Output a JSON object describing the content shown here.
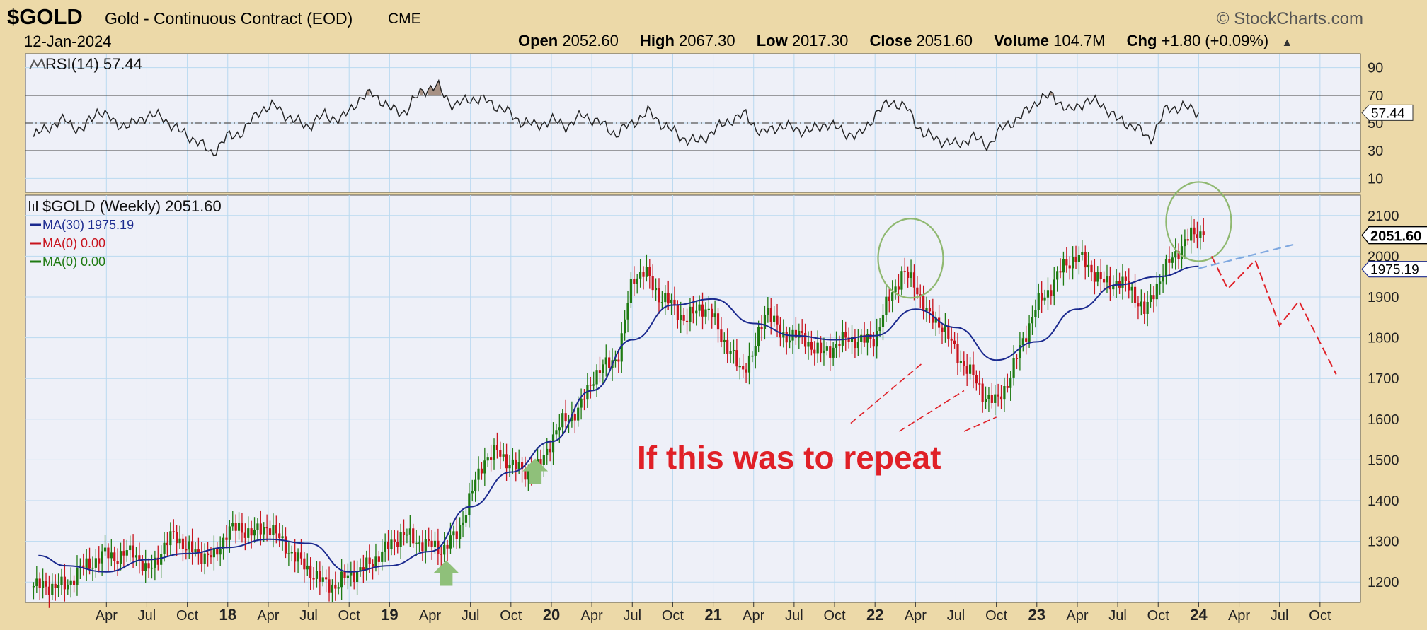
{
  "header": {
    "symbol": "$GOLD",
    "description": "Gold - Continuous Contract (EOD)",
    "exchange": "CME",
    "brand": "© StockCharts.com",
    "date": "12-Jan-2024",
    "open_label": "Open",
    "open": "2052.60",
    "high_label": "High",
    "high": "2067.30",
    "low_label": "Low",
    "low": "2017.30",
    "close_label": "Close",
    "close": "2051.60",
    "volume_label": "Volume",
    "volume": "104.7M",
    "chg_label": "Chg",
    "chg": "+1.80 (+0.09%)"
  },
  "colors": {
    "frame_bg": "#ecd9a8",
    "plot_bg": "#eef0f8",
    "grid": "#b9d9f0",
    "up_bar": "#1e7a12",
    "down_bar": "#c8141e",
    "ma30": "#1b2a8f",
    "rsi_line": "#222222",
    "rsi_fill": "#9a8070",
    "annotation_red": "#e02027",
    "arrow_green": "#8fc07a",
    "circle_green": "#8fb870",
    "projection_blue": "#7fa8e0"
  },
  "chart_data": [
    {
      "type": "line",
      "name": "rsi-panel",
      "legend": {
        "icon": "rsi-icon",
        "label": "RSI(14)",
        "value": "57.44"
      },
      "ylim": [
        0,
        100
      ],
      "yticks": [
        10,
        30,
        50,
        70,
        90
      ],
      "reference_lines": [
        30,
        50,
        70
      ],
      "last_value_tag": "57.44",
      "x": [
        2016.8,
        2016.9,
        2017.0,
        2017.1,
        2017.2,
        2017.3,
        2017.4,
        2017.5,
        2017.6,
        2017.7,
        2017.8,
        2017.9,
        2018.0,
        2018.1,
        2018.2,
        2018.3,
        2018.4,
        2018.5,
        2018.6,
        2018.7,
        2018.8,
        2018.9,
        2019.0,
        2019.1,
        2019.2,
        2019.3,
        2019.4,
        2019.5,
        2019.6,
        2019.7,
        2019.8,
        2019.9,
        2020.0,
        2020.1,
        2020.2,
        2020.3,
        2020.4,
        2020.5,
        2020.6,
        2020.7,
        2020.8,
        2020.9,
        2021.0,
        2021.1,
        2021.2,
        2021.3,
        2021.4,
        2021.5,
        2021.6,
        2021.7,
        2021.8,
        2021.9,
        2022.0,
        2022.1,
        2022.2,
        2022.3,
        2022.4,
        2022.5,
        2022.6,
        2022.7,
        2022.8,
        2022.9,
        2023.0,
        2023.1,
        2023.2,
        2023.3,
        2023.4,
        2023.5,
        2023.6,
        2023.7,
        2023.8,
        2023.9,
        2024.0
      ],
      "values": [
        40,
        48,
        52,
        44,
        60,
        50,
        48,
        56,
        54,
        44,
        38,
        28,
        40,
        44,
        60,
        62,
        52,
        48,
        56,
        52,
        66,
        72,
        60,
        58,
        74,
        76,
        62,
        68,
        66,
        60,
        52,
        48,
        52,
        48,
        56,
        50,
        42,
        50,
        58,
        48,
        40,
        36,
        44,
        52,
        56,
        42,
        48,
        46,
        44,
        50,
        44,
        40,
        56,
        66,
        60,
        42,
        38,
        34,
        40,
        34,
        48,
        54,
        66,
        70,
        58,
        66,
        64,
        52,
        48,
        38,
        60,
        62,
        57.44
      ]
    },
    {
      "type": "candlestick",
      "name": "price-panel",
      "legend_title": "$GOLD (Weekly) 2051.60",
      "legend_icon": "price-bars-icon",
      "series": [
        {
          "name": "MA(30) 1975.19",
          "color": "#1b2a8f"
        },
        {
          "name": "MA(0) 0.00",
          "color": "#c8141e"
        },
        {
          "name": "MA(0) 0.00",
          "color": "#1e7a12"
        }
      ],
      "ylim": [
        1150,
        2150
      ],
      "yticks": [
        1200,
        1300,
        1400,
        1500,
        1600,
        1700,
        1800,
        1900,
        2000,
        2100
      ],
      "price_tags": [
        "2051.60",
        "1975.19"
      ],
      "x_labels": [
        {
          "t": 2017.25,
          "label": "Apr"
        },
        {
          "t": 2017.5,
          "label": "Jul"
        },
        {
          "t": 2017.75,
          "label": "Oct"
        },
        {
          "t": 2018.0,
          "label": "18"
        },
        {
          "t": 2018.25,
          "label": "Apr"
        },
        {
          "t": 2018.5,
          "label": "Jul"
        },
        {
          "t": 2018.75,
          "label": "Oct"
        },
        {
          "t": 2019.0,
          "label": "19"
        },
        {
          "t": 2019.25,
          "label": "Apr"
        },
        {
          "t": 2019.5,
          "label": "Jul"
        },
        {
          "t": 2019.75,
          "label": "Oct"
        },
        {
          "t": 2020.0,
          "label": "20"
        },
        {
          "t": 2020.25,
          "label": "Apr"
        },
        {
          "t": 2020.5,
          "label": "Jul"
        },
        {
          "t": 2020.75,
          "label": "Oct"
        },
        {
          "t": 2021.0,
          "label": "21"
        },
        {
          "t": 2021.25,
          "label": "Apr"
        },
        {
          "t": 2021.5,
          "label": "Jul"
        },
        {
          "t": 2021.75,
          "label": "Oct"
        },
        {
          "t": 2022.0,
          "label": "22"
        },
        {
          "t": 2022.25,
          "label": "Apr"
        },
        {
          "t": 2022.5,
          "label": "Jul"
        },
        {
          "t": 2022.75,
          "label": "Oct"
        },
        {
          "t": 2023.0,
          "label": "23"
        },
        {
          "t": 2023.25,
          "label": "Apr"
        },
        {
          "t": 2023.5,
          "label": "Jul"
        },
        {
          "t": 2023.75,
          "label": "Oct"
        },
        {
          "t": 2024.0,
          "label": "24"
        },
        {
          "t": 2024.25,
          "label": "Apr"
        },
        {
          "t": 2024.5,
          "label": "Jul"
        },
        {
          "t": 2024.75,
          "label": "Oct"
        }
      ],
      "price_x": [
        2017.0,
        2017.08,
        2017.17,
        2017.25,
        2017.33,
        2017.42,
        2017.5,
        2017.58,
        2017.67,
        2017.75,
        2017.83,
        2017.92,
        2018.0,
        2018.08,
        2018.17,
        2018.25,
        2018.33,
        2018.42,
        2018.5,
        2018.58,
        2018.67,
        2018.75,
        2018.83,
        2018.92,
        2019.0,
        2019.08,
        2019.17,
        2019.25,
        2019.33,
        2019.42,
        2019.5,
        2019.58,
        2019.67,
        2019.75,
        2019.83,
        2019.92,
        2020.0,
        2020.08,
        2020.17,
        2020.25,
        2020.33,
        2020.42,
        2020.5,
        2020.58,
        2020.67,
        2020.75,
        2020.83,
        2020.92,
        2021.0,
        2021.08,
        2021.17,
        2021.25,
        2021.33,
        2021.42,
        2021.5,
        2021.58,
        2021.67,
        2021.75,
        2021.83,
        2021.92,
        2022.0,
        2022.08,
        2022.17,
        2022.25,
        2022.33,
        2022.42,
        2022.5,
        2022.58,
        2022.67,
        2022.75,
        2022.83,
        2022.92,
        2023.0,
        2023.08,
        2023.17,
        2023.25,
        2023.33,
        2023.42,
        2023.5,
        2023.58,
        2023.67,
        2023.75,
        2023.83,
        2023.92,
        2024.0,
        2024.03
      ],
      "price_values": [
        1190,
        1230,
        1250,
        1270,
        1260,
        1280,
        1220,
        1270,
        1320,
        1280,
        1270,
        1260,
        1330,
        1330,
        1320,
        1340,
        1300,
        1260,
        1230,
        1200,
        1190,
        1220,
        1230,
        1260,
        1290,
        1320,
        1300,
        1290,
        1280,
        1320,
        1410,
        1500,
        1520,
        1490,
        1470,
        1480,
        1550,
        1600,
        1620,
        1700,
        1730,
        1760,
        1950,
        1960,
        1900,
        1880,
        1840,
        1880,
        1850,
        1780,
        1720,
        1760,
        1880,
        1800,
        1810,
        1790,
        1760,
        1780,
        1800,
        1790,
        1800,
        1890,
        1960,
        1930,
        1850,
        1830,
        1760,
        1720,
        1660,
        1640,
        1700,
        1800,
        1880,
        1920,
        1980,
        2000,
        1970,
        1930,
        1940,
        1920,
        1860,
        1940,
        1990,
        2040,
        2060,
        2051.6
      ],
      "ma30_x": [
        2016.83,
        2017.0,
        2017.25,
        2017.5,
        2017.75,
        2018.0,
        2018.25,
        2018.5,
        2018.75,
        2019.0,
        2019.25,
        2019.5,
        2019.75,
        2020.0,
        2020.25,
        2020.5,
        2020.75,
        2021.0,
        2021.25,
        2021.5,
        2021.75,
        2022.0,
        2022.25,
        2022.5,
        2022.75,
        2023.0,
        2023.25,
        2023.5,
        2023.75,
        2024.0
      ],
      "ma30_values": [
        1265,
        1240,
        1225,
        1255,
        1270,
        1285,
        1305,
        1295,
        1225,
        1240,
        1275,
        1385,
        1470,
        1545,
        1670,
        1795,
        1880,
        1895,
        1835,
        1805,
        1795,
        1805,
        1870,
        1825,
        1745,
        1790,
        1870,
        1930,
        1950,
        1975.19
      ],
      "annotations": {
        "text": "If this was to repeat",
        "circles": [
          {
            "t": 2022.22,
            "price": 1995
          },
          {
            "t": 2024.0,
            "price": 2085
          }
        ],
        "up_arrows": [
          {
            "t": 2019.35,
            "price": 1215
          },
          {
            "t": 2019.9,
            "price": 1465
          }
        ],
        "red_dashes": [
          [
            {
              "t": 2021.85,
              "price": 1590
            },
            {
              "t": 2022.3,
              "price": 1740
            }
          ],
          [
            {
              "t": 2022.15,
              "price": 1570
            },
            {
              "t": 2022.55,
              "price": 1670
            }
          ],
          [
            {
              "t": 2022.55,
              "price": 1570
            },
            {
              "t": 2022.75,
              "price": 1605
            }
          ]
        ],
        "projection_red": [
          {
            "t": 2024.08,
            "price": 2000
          },
          {
            "t": 2024.18,
            "price": 1920
          },
          {
            "t": 2024.35,
            "price": 1990
          },
          {
            "t": 2024.5,
            "price": 1830
          },
          {
            "t": 2024.62,
            "price": 1890
          },
          {
            "t": 2024.85,
            "price": 1710
          }
        ],
        "projection_blue": [
          {
            "t": 2024.0,
            "price": 1970
          },
          {
            "t": 2024.6,
            "price": 2030
          }
        ]
      }
    }
  ]
}
